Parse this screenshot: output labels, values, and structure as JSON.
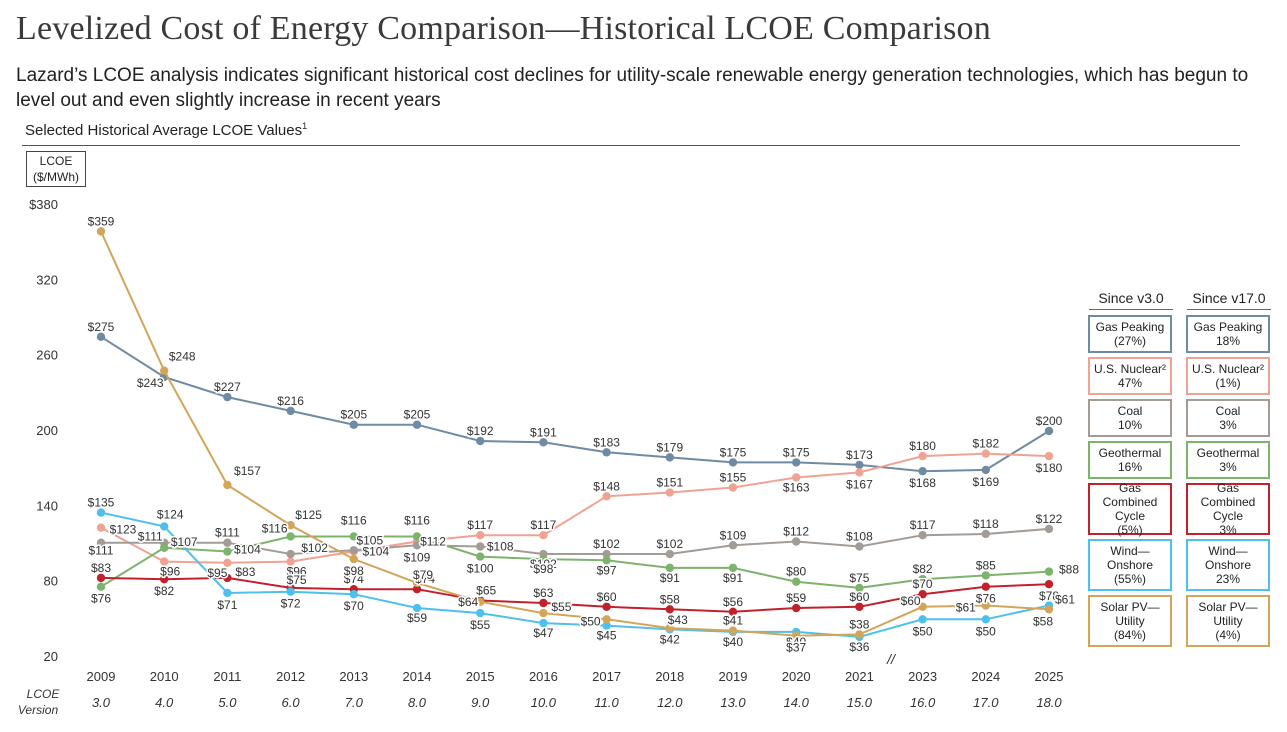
{
  "title": "Levelized Cost of Energy Comparison—Historical LCOE Comparison",
  "subtitle": "Lazard’s LCOE analysis indicates significant historical cost declines for utility-scale renewable energy generation technologies, which has begun to level out and even slightly increase in recent years",
  "caption": "Selected Historical Average LCOE Values",
  "caption_footnote": "1",
  "unit_label_line1": "LCOE",
  "unit_label_line2": "($/MWh)",
  "version_label": "LCOE Version",
  "legend": {
    "header_left": "Since v3.0",
    "header_right": "Since v17.0",
    "items": [
      {
        "name": "Gas Peaking",
        "since_v3": "(27%)",
        "since_v17": "18%",
        "color": "#6f8aa3"
      },
      {
        "name": "U.S. Nuclear²",
        "since_v3": "47%",
        "since_v17": "(1%)",
        "color": "#f0a393"
      },
      {
        "name": "Coal",
        "since_v3": "10%",
        "since_v17": "3%",
        "color": "#a39c96"
      },
      {
        "name": "Geothermal",
        "since_v3": "16%",
        "since_v17": "3%",
        "color": "#7cb36d"
      },
      {
        "name": "Gas Combined Cycle",
        "since_v3": "(5%)",
        "since_v17": "3%",
        "color": "#c0212b"
      },
      {
        "name": "Wind—Onshore",
        "since_v3": "(55%)",
        "since_v17": "23%",
        "color": "#4fc0ec"
      },
      {
        "name": "Solar PV—Utility",
        "since_v3": "(84%)",
        "since_v17": "(4%)",
        "color": "#d3a55a"
      }
    ]
  },
  "chart_data": {
    "type": "line",
    "title": "Selected Historical Average LCOE Values",
    "ylabel": "LCOE ($/MWh)",
    "ylim": [
      20,
      380
    ],
    "yticks": [
      "$380",
      "320",
      "260",
      "200",
      "140",
      "80",
      "20"
    ],
    "categories": [
      "2009",
      "2010",
      "2011",
      "2012",
      "2013",
      "2014",
      "2015",
      "2016",
      "2017",
      "2018",
      "2019",
      "2020",
      "2021",
      "2023",
      "2024",
      "2025"
    ],
    "versions": [
      "3.0",
      "4.0",
      "5.0",
      "6.0",
      "7.0",
      "8.0",
      "9.0",
      "10.0",
      "11.0",
      "12.0",
      "13.0",
      "14.0",
      "15.0",
      "16.0",
      "17.0",
      "18.0"
    ],
    "axis_break_marker": "//",
    "series": [
      {
        "name": "Gas Peaking",
        "color": "#6f8aa3",
        "values": [
          275,
          243,
          227,
          216,
          205,
          205,
          192,
          191,
          183,
          179,
          175,
          175,
          173,
          168,
          169,
          200
        ],
        "labels": [
          "$275",
          "$243",
          "$227",
          "$216",
          "$205",
          "$205",
          "$192",
          "$191",
          "$183",
          "$179",
          "$175",
          "$175",
          "$173",
          "$168",
          "$169",
          "$200"
        ]
      },
      {
        "name": "U.S. Nuclear",
        "color": "#f0a393",
        "values": [
          123,
          96,
          95,
          96,
          104,
          112,
          117,
          117,
          148,
          151,
          155,
          163,
          167,
          180,
          182,
          180
        ],
        "labels": [
          "$123",
          "$96",
          "$95",
          "$96",
          "$104",
          "$112",
          "$117",
          "$117",
          "$148",
          "$151",
          "$155",
          "$163",
          "$167",
          "$180",
          "$182",
          "$180"
        ]
      },
      {
        "name": "Coal",
        "color": "#a39c96",
        "values": [
          111,
          111,
          111,
          102,
          105,
          109,
          108,
          102,
          102,
          102,
          109,
          112,
          108,
          117,
          118,
          122
        ],
        "labels": [
          "$111",
          "$111",
          "$111",
          "$102",
          "$105",
          "$109",
          "$108",
          "$102",
          "$102",
          "$102",
          "$109",
          "$112",
          "$108",
          "$117",
          "$118",
          "$122"
        ]
      },
      {
        "name": "Geothermal",
        "color": "#7cb36d",
        "values": [
          76,
          107,
          104,
          116,
          116,
          116,
          100,
          98,
          97,
          91,
          91,
          80,
          75,
          82,
          85,
          88
        ],
        "labels": [
          "$76",
          "$107",
          "$104",
          "$116",
          "$116",
          "$116",
          "$100",
          "$98",
          "$97",
          "$91",
          "$91",
          "$80",
          "$75",
          "$82",
          "$85",
          "$88"
        ]
      },
      {
        "name": "Gas Combined Cycle",
        "color": "#c0212b",
        "values": [
          83,
          82,
          83,
          75,
          74,
          74,
          65,
          63,
          60,
          58,
          56,
          59,
          60,
          70,
          76,
          78
        ],
        "labels": [
          "$83",
          "$82",
          "$83",
          "$75",
          "$74",
          "$74",
          "$65",
          "$63",
          "$60",
          "$58",
          "$56",
          "$59",
          "$60",
          "$70",
          "$76",
          "$78"
        ]
      },
      {
        "name": "Wind—Onshore",
        "color": "#4fc0ec",
        "values": [
          135,
          124,
          71,
          72,
          70,
          59,
          55,
          47,
          45,
          42,
          40,
          40,
          36,
          50,
          50,
          61
        ],
        "labels": [
          "$135",
          "$124",
          "$71",
          "$72",
          "$70",
          "$59",
          "$55",
          "$47",
          "$45",
          "$42",
          "$40",
          "$40",
          "$36",
          "$50",
          "$50",
          "$61"
        ]
      },
      {
        "name": "Solar PV—Utility",
        "color": "#d3a55a",
        "values": [
          359,
          248,
          157,
          125,
          98,
          79,
          64,
          55,
          50,
          43,
          41,
          37,
          38,
          60,
          61,
          58
        ],
        "labels": [
          "$359",
          "$248",
          "$157",
          "$125",
          "$98",
          "$79",
          "$64",
          "$55",
          "$50",
          "$43",
          "$41",
          "$37",
          "$38",
          "$60",
          "$61",
          "$58"
        ]
      }
    ]
  }
}
